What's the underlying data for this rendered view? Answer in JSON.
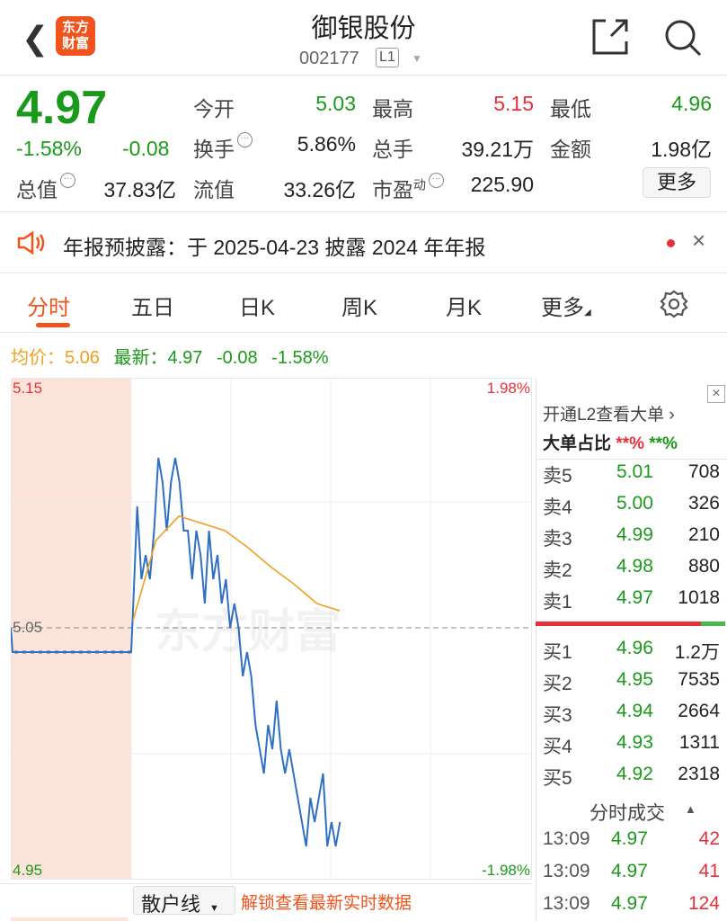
{
  "header": {
    "title": "御银股份",
    "code": "002177",
    "level": "L1",
    "logo_text": "东方财富"
  },
  "quote": {
    "price": "4.97",
    "change_pct": "-1.58%",
    "change": "-0.08",
    "fields": [
      {
        "label": "今开",
        "value": "5.03",
        "color": "green"
      },
      {
        "label": "最高",
        "value": "5.15",
        "color": "red"
      },
      {
        "label": "最低",
        "value": "4.96",
        "color": "green"
      },
      {
        "label": "换手",
        "value": "5.86%",
        "info": true
      },
      {
        "label": "总手",
        "value": "39.21万"
      },
      {
        "label": "金额",
        "value": "1.98亿"
      },
      {
        "label": "总值",
        "value": "37.83亿",
        "info": true
      },
      {
        "label": "流值",
        "value": "33.26亿"
      },
      {
        "label": "市盈",
        "sup": "动",
        "value": "225.90",
        "info": true
      }
    ],
    "more": "更多"
  },
  "notice": {
    "text": "年报预披露：于 2025-04-23 披露 2024 年年报"
  },
  "tabs": [
    "分时",
    "五日",
    "日K",
    "周K",
    "月K",
    "更多"
  ],
  "active_tab": "分时",
  "legend": {
    "avg_label": "均价：",
    "avg": "5.06",
    "latest_label": "最新：",
    "latest": "4.97",
    "change": "-0.08",
    "change_pct": "-1.58%"
  },
  "chart_data": {
    "type": "line",
    "ylim": [
      4.95,
      5.15
    ],
    "prev_close": 5.05,
    "y_labels": {
      "top": "5.15",
      "mid": "5.05",
      "bottom": "4.95",
      "top_pct": "1.98%",
      "bottom_pct": "-1.98%"
    },
    "watermark": "东方财富",
    "series": [
      {
        "color": "#2f6fc4",
        "values": [
          5.05,
          5.04,
          5.04,
          5.057,
          5.1,
          5.07,
          5.08,
          5.07,
          5.09,
          5.12,
          5.11,
          5.09,
          5.11,
          5.12,
          5.11,
          5.09,
          5.09,
          5.07,
          5.09,
          5.08,
          5.06,
          5.09,
          5.07,
          5.08,
          5.06,
          5.07,
          5.05,
          5.06,
          5.05,
          5.03,
          5.04,
          5.03,
          5.01,
          5.0,
          4.99,
          5.01,
          5.0,
          5.02,
          5.0,
          4.99,
          5.0,
          4.99,
          4.98,
          4.97,
          4.96,
          4.98,
          4.97,
          4.98,
          4.99,
          4.96,
          4.97,
          4.96,
          4.97
        ]
      },
      {
        "color": "#f0a020",
        "values": [
          5.053,
          5.086,
          5.096,
          5.093,
          5.09,
          5.083,
          5.075,
          5.068,
          5.06,
          5.057
        ]
      }
    ]
  },
  "orderbook": {
    "promo": "开通L2查看大单",
    "big_label": "大单占比",
    "big_red": "**%",
    "big_green": "**%",
    "asks": [
      {
        "l": "卖5",
        "p": "5.01",
        "v": "708"
      },
      {
        "l": "卖4",
        "p": "5.00",
        "v": "326"
      },
      {
        "l": "卖3",
        "p": "4.99",
        "v": "210"
      },
      {
        "l": "卖2",
        "p": "4.98",
        "v": "880"
      },
      {
        "l": "卖1",
        "p": "4.97",
        "v": "1018"
      }
    ],
    "bids": [
      {
        "l": "买1",
        "p": "4.96",
        "v": "1.2万"
      },
      {
        "l": "买2",
        "p": "4.95",
        "v": "7535"
      },
      {
        "l": "买3",
        "p": "4.94",
        "v": "2664"
      },
      {
        "l": "买4",
        "p": "4.93",
        "v": "1311"
      },
      {
        "l": "买5",
        "p": "4.92",
        "v": "2318"
      }
    ],
    "ask_ratio": 0.87,
    "trades_title": "分时成交",
    "trades": [
      {
        "t": "13:09",
        "p": "4.97",
        "v": "42"
      },
      {
        "t": "13:09",
        "p": "4.97",
        "v": "41"
      },
      {
        "t": "13:09",
        "p": "4.97",
        "v": "124"
      }
    ]
  },
  "bottom": {
    "select": "散户线",
    "unlock": "解锁查看最新实时数据"
  }
}
